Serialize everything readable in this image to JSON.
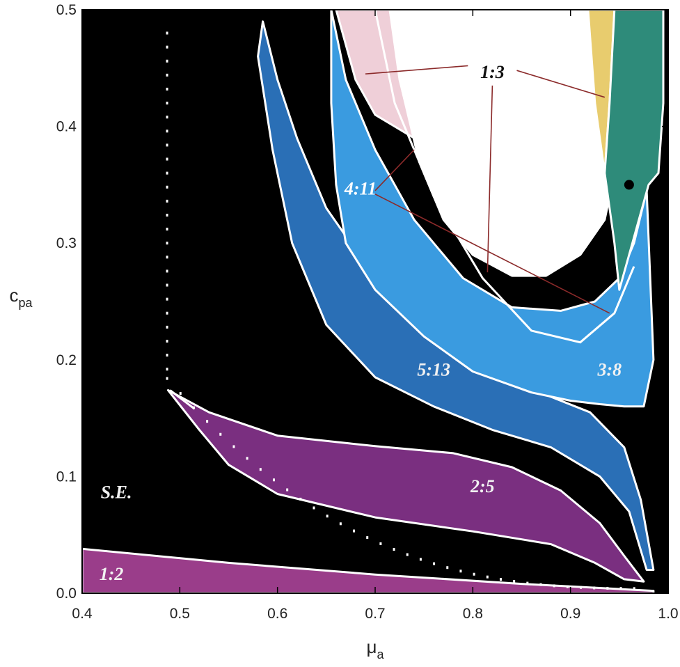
{
  "chart_data": {
    "type": "area",
    "xlabel_main": "μ",
    "xlabel_sub": "a",
    "ylabel_main": "c",
    "ylabel_sub": "pa",
    "xlim": [
      0.4,
      1.0
    ],
    "ylim": [
      0.0,
      0.5
    ],
    "xticks": [
      "0.4",
      "0.5",
      "0.6",
      "0.7",
      "0.8",
      "0.9",
      "1.0"
    ],
    "yticks": [
      "0.0",
      "0.1",
      "0.2",
      "0.3",
      "0.4",
      "0.5"
    ],
    "background_color": "#000000",
    "regions": [
      {
        "label": "1:2",
        "color": "#9a3d8a",
        "label_at": [
          0.43,
          0.015
        ]
      },
      {
        "label": "2:5",
        "color": "#7a2f80",
        "label_at": [
          0.81,
          0.09
        ]
      },
      {
        "label": "5:13",
        "color": "#2a6fb6",
        "label_at": [
          0.76,
          0.19
        ]
      },
      {
        "label": "3:8",
        "color": "#3a9be0",
        "label_at": [
          0.94,
          0.19
        ]
      },
      {
        "label": "1:3",
        "color": "#ffffff",
        "label_at": [
          0.82,
          0.445
        ]
      },
      {
        "label": "4:11",
        "color": "#ffffff",
        "label_at": [
          0.685,
          0.345
        ]
      },
      {
        "label": "S.E.",
        "color": "#ffffff",
        "label_at": [
          0.435,
          0.085
        ]
      }
    ],
    "marker": {
      "x": 0.96,
      "y": 0.35,
      "color": "#000000"
    },
    "colors": {
      "pink": "#efcfd8",
      "yellow": "#e8cc6e",
      "teal": "#2e8b7a",
      "white": "#ffffff",
      "boundary": "#ffffff",
      "leader": "#8b2a2a"
    }
  }
}
